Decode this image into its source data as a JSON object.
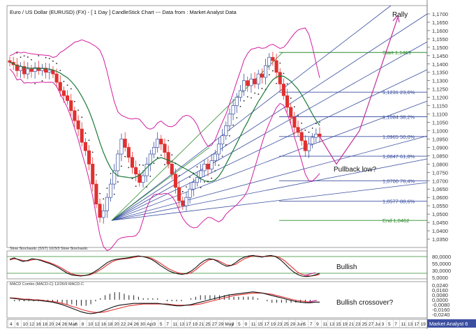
{
  "chart_data": {
    "type": "candlestick",
    "title": "Euro / US Dollar (EURUSD) (FX) -  [ 1 Day ] CandleStick Chart --- Data from : Market Analyst Data",
    "price_axis": {
      "ylim": [
        1.03,
        1.175
      ],
      "ticks": [
        "1,1700",
        "1,1650",
        "1,1600",
        "1,1550",
        "1,1500",
        "1,1450",
        "1,1400",
        "1,1350",
        "1,1300",
        "1,1250",
        "1,1200",
        "1,1150",
        "1,1100",
        "1,1050",
        "1,1000",
        "1,0950",
        "1,0900",
        "1,0850",
        "1,0800",
        "1,0750",
        "1,0700",
        "1,0650",
        "1,0600",
        "1,0550",
        "1,0500",
        "1,0450",
        "1,0400",
        "1,0350"
      ]
    },
    "fib_levels": [
      {
        "label": "Start 1,1469",
        "value": 1.1469,
        "color": "#2e8b2e"
      },
      {
        "label": "1,1231 23,6%",
        "value": 1.1231,
        "color": "#3b4fa0"
      },
      {
        "label": "1,1084 38,2%",
        "value": 1.1084,
        "color": "#3b4fa0"
      },
      {
        "label": "1,0965 50,0%",
        "value": 1.0965,
        "color": "#3b4fa0"
      },
      {
        "label": "1,0847 61,8%",
        "value": 1.0847,
        "color": "#3b4fa0"
      },
      {
        "label": "1,0700 76,4%",
        "value": 1.07,
        "color": "#3b4fa0"
      },
      {
        "label": "1,0577 88,6%",
        "value": 1.0577,
        "color": "#3b4fa0"
      },
      {
        "label": "End 1,0462",
        "value": 1.0462,
        "color": "#2e8b2e"
      }
    ],
    "annotations": [
      "Rally",
      "Pullback low?",
      "Bullish",
      "Bullish crossover?"
    ],
    "closes": [
      1.141,
      1.1395,
      1.136,
      1.1385,
      1.134,
      1.137,
      1.1355,
      1.1378,
      1.136,
      1.1375,
      1.135,
      1.1362,
      1.134,
      1.129,
      1.124,
      1.121,
      1.118,
      1.112,
      1.106,
      1.101,
      1.093,
      1.088,
      1.08,
      1.068,
      1.056,
      1.048,
      1.052,
      1.06,
      1.068,
      1.076,
      1.086,
      1.095,
      1.09,
      1.084,
      1.078,
      1.074,
      1.069,
      1.073,
      1.08,
      1.086,
      1.09,
      1.095,
      1.092,
      1.087,
      1.08,
      1.074,
      1.066,
      1.058,
      1.055,
      1.06,
      1.065,
      1.069,
      1.072,
      1.076,
      1.08,
      1.077,
      1.082,
      1.086,
      1.092,
      1.097,
      1.103,
      1.11,
      1.115,
      1.12,
      1.124,
      1.13,
      1.127,
      1.131,
      1.128,
      1.134,
      1.132,
      1.139,
      1.144,
      1.142,
      1.135,
      1.128,
      1.121,
      1.114,
      1.108,
      1.102,
      1.099,
      1.094,
      1.088,
      1.092,
      1.096,
      1.098,
      1.0965
    ],
    "stochastic": {
      "title": "Slow Stochastic (SST) 10/3/3 Slow Stochastic",
      "ticks": [
        "80,0000",
        "55,0000",
        "30,0000",
        "5,0000"
      ],
      "ylim": [
        0,
        100
      ],
      "label": "Bullish",
      "k": [
        70,
        75,
        68,
        62,
        66,
        72,
        70,
        66,
        60,
        55,
        48,
        40,
        30,
        20,
        14,
        12,
        10,
        12,
        16,
        24,
        34,
        46,
        58,
        66,
        70,
        72,
        74,
        76,
        80,
        82,
        80,
        76,
        70,
        60,
        48,
        38,
        28,
        22,
        18,
        16,
        20,
        28,
        40,
        55,
        66,
        72,
        70,
        62,
        52,
        45,
        48,
        58,
        70,
        78,
        82,
        84,
        80,
        78,
        82,
        84,
        80,
        70,
        56,
        40,
        26,
        16,
        10,
        8,
        10,
        14,
        20
      ],
      "d": [
        68,
        72,
        70,
        66,
        64,
        68,
        70,
        68,
        63,
        58,
        52,
        45,
        36,
        26,
        18,
        14,
        12,
        12,
        14,
        20,
        28,
        38,
        50,
        60,
        67,
        70,
        72,
        74,
        77,
        80,
        80,
        78,
        74,
        66,
        56,
        45,
        35,
        28,
        22,
        18,
        18,
        22,
        32,
        46,
        58,
        68,
        70,
        66,
        58,
        50,
        48,
        52,
        62,
        72,
        78,
        82,
        82,
        80,
        80,
        82,
        81,
        76,
        66,
        52,
        38,
        24,
        16,
        12,
        10,
        12,
        16
      ]
    },
    "macd": {
      "title": "MACD Combo (MACD-C) 12/26/9 MACD-C",
      "ticks": [
        "0,0240",
        "0,0160",
        "0,0080",
        "0,0000",
        "-0,0080",
        "-0,0160",
        "-0,0240"
      ],
      "ylim": [
        -0.03,
        0.03
      ],
      "label": "Bullish crossover?",
      "line": [
        0.003,
        0.002,
        0.001,
        0.0,
        0.0,
        -0.001,
        -0.001,
        -0.002,
        -0.003,
        -0.004,
        -0.006,
        -0.008,
        -0.011,
        -0.014,
        -0.017,
        -0.02,
        -0.022,
        -0.023,
        -0.022,
        -0.02,
        -0.017,
        -0.014,
        -0.011,
        -0.009,
        -0.008,
        -0.007,
        -0.006,
        -0.006,
        -0.006,
        -0.006,
        -0.006,
        -0.006,
        -0.007,
        -0.008,
        -0.009,
        -0.01,
        -0.01,
        -0.009,
        -0.008,
        -0.006,
        -0.004,
        -0.002,
        0.0,
        0.002,
        0.004,
        0.006,
        0.008,
        0.009,
        0.01,
        0.011,
        0.012,
        0.013,
        0.012,
        0.011,
        0.009,
        0.007,
        0.005,
        0.003,
        0.001,
        -0.001,
        -0.003,
        -0.004,
        -0.005,
        -0.005,
        -0.004,
        -0.004
      ],
      "signal": [
        0.003,
        0.003,
        0.002,
        0.001,
        0.001,
        0.0,
        0.0,
        -0.001,
        -0.002,
        -0.003,
        -0.004,
        -0.006,
        -0.008,
        -0.011,
        -0.013,
        -0.016,
        -0.018,
        -0.02,
        -0.021,
        -0.021,
        -0.02,
        -0.018,
        -0.016,
        -0.014,
        -0.012,
        -0.01,
        -0.009,
        -0.008,
        -0.007,
        -0.007,
        -0.007,
        -0.007,
        -0.007,
        -0.007,
        -0.008,
        -0.009,
        -0.009,
        -0.009,
        -0.009,
        -0.008,
        -0.007,
        -0.005,
        -0.003,
        -0.001,
        0.001,
        0.003,
        0.005,
        0.007,
        0.008,
        0.009,
        0.01,
        0.011,
        0.011,
        0.011,
        0.01,
        0.009,
        0.007,
        0.005,
        0.003,
        0.001,
        -0.001,
        -0.002,
        -0.003,
        -0.004,
        -0.004,
        -0.004
      ]
    },
    "x_axis": {
      "labels": [
        "4",
        "6",
        "10",
        "12",
        "16",
        "18",
        "20",
        "24",
        "26",
        "Mar",
        "6",
        "8",
        "10",
        "12",
        "16",
        "18",
        "20",
        "22",
        "24",
        "26",
        "30",
        "Apr",
        "3",
        "5",
        "7",
        "11",
        "13",
        "17",
        "19",
        "21",
        "25",
        "27",
        "29",
        "May",
        "3",
        "5",
        "9",
        "11",
        "15",
        "17",
        "19",
        "23",
        "25",
        "29",
        "Jun",
        "5",
        "7",
        "9",
        "11",
        "13",
        "15",
        "19",
        "21",
        "23",
        "25",
        "27",
        "Jul",
        "3",
        "5",
        "7",
        "11",
        "13",
        "17",
        "19"
      ],
      "footer": "Market Analyst 6"
    }
  }
}
